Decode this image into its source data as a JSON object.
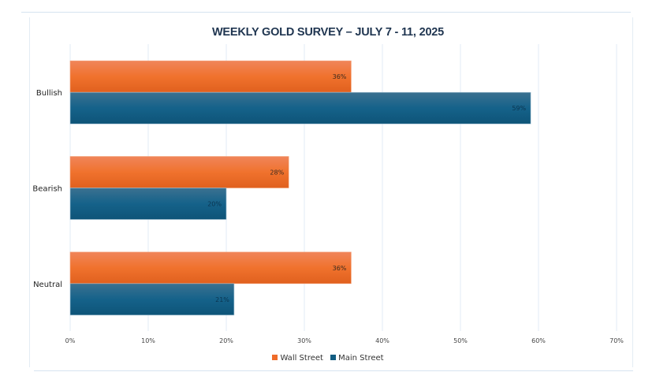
{
  "chart_data": {
    "type": "bar",
    "orientation": "horizontal",
    "title": "WEEKLY GOLD SURVEY – JULY 7 - 11, 2025",
    "categories": [
      "Bullish",
      "Bearish",
      "Neutral"
    ],
    "series": [
      {
        "name": "Wall Street",
        "color": "#ef6c2a",
        "values": [
          36,
          28,
          36
        ],
        "labels": [
          "36%",
          "28%",
          "36%"
        ]
      },
      {
        "name": "Main Street",
        "color": "#125d82",
        "values": [
          59,
          20,
          21
        ],
        "labels": [
          "59%",
          "20%",
          "21%"
        ]
      }
    ],
    "xlim": [
      0,
      70
    ],
    "xticks": [
      0,
      10,
      20,
      30,
      40,
      50,
      60,
      70
    ],
    "xtick_labels": [
      "0%",
      "10%",
      "20%",
      "30%",
      "40%",
      "50%",
      "60%",
      "70%"
    ],
    "xlabel": "",
    "ylabel": "",
    "grid": true,
    "legend_position": "bottom"
  }
}
